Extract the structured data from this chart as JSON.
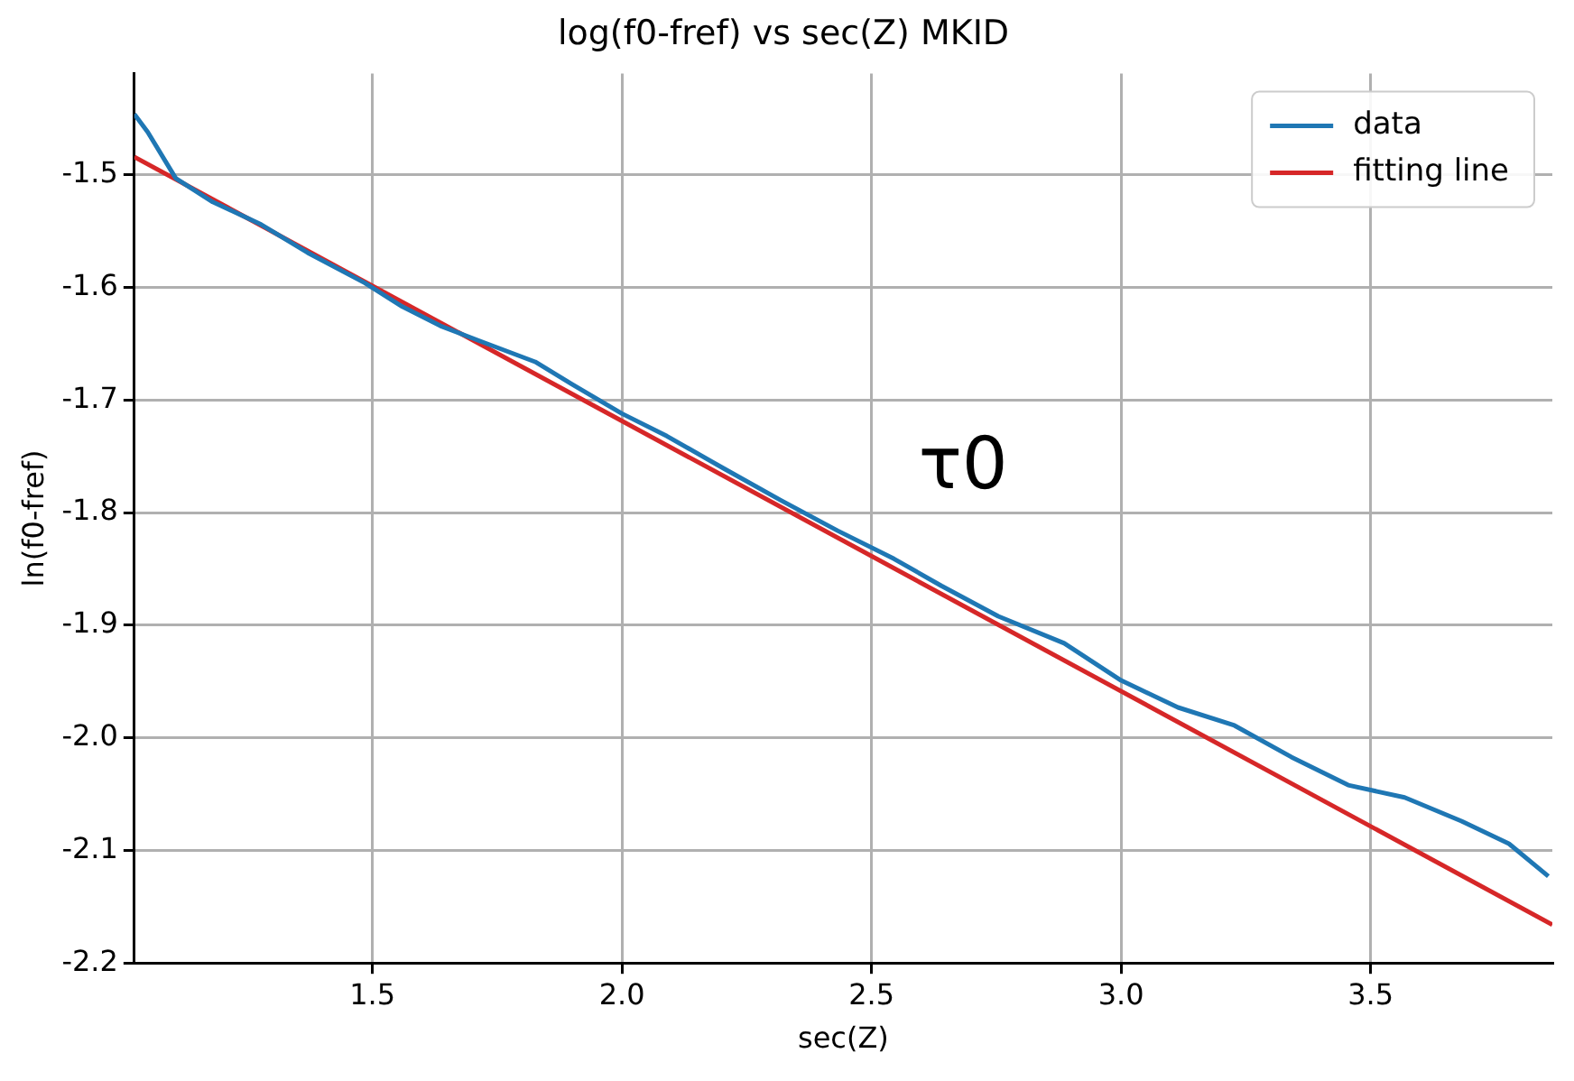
{
  "chart_data": {
    "type": "line",
    "title": "log(f0-fref) vs sec(Z) MKID",
    "xlabel": "sec(Z)",
    "ylabel": "ln(f0-fref)",
    "xlim": [
      1.023,
      3.864
    ],
    "xticks": [
      1.5,
      {
        "value": 2,
        "label": "2.0"
      },
      2.5,
      {
        "value": 3,
        "label": "3.0"
      },
      3.5
    ],
    "ylim": [
      -2.2,
      -1.41
    ],
    "yticks": [
      -2.2,
      -2.1,
      {
        "value": -2,
        "label": "-2.0"
      },
      -1.9,
      -1.8,
      -1.7,
      -1.6,
      -1.5
    ],
    "grid": true,
    "legend": "top right",
    "marker": "none",
    "line_style": "solid",
    "annotations": [
      "τ0"
    ],
    "series": [
      {
        "name": "data",
        "color": "#1f77b4",
        "x": [
          1.023,
          1.05,
          1.106,
          1.18,
          1.277,
          1.37,
          1.485,
          1.56,
          1.636,
          1.712,
          1.826,
          1.9,
          2.0,
          2.09,
          2.205,
          2.318,
          2.432,
          2.545,
          2.64,
          2.754,
          2.886,
          3.0,
          3.114,
          3.227,
          3.341,
          3.455,
          3.568,
          3.682,
          3.777,
          3.856
        ],
        "values": [
          -1.446,
          -1.462,
          -1.503,
          -1.524,
          -1.544,
          -1.569,
          -1.596,
          -1.617,
          -1.634,
          -1.647,
          -1.666,
          -1.686,
          -1.712,
          -1.732,
          -1.761,
          -1.789,
          -1.816,
          -1.841,
          -1.865,
          -1.892,
          -1.916,
          -1.949,
          -1.973,
          -1.989,
          -2.017,
          -2.042,
          -2.053,
          -2.074,
          -2.094,
          -2.123
        ]
      },
      {
        "name": "fitting line",
        "color": "#d62728",
        "x": [
          1.023,
          3.864
        ],
        "values": [
          -1.484,
          -2.166
        ]
      }
    ]
  }
}
